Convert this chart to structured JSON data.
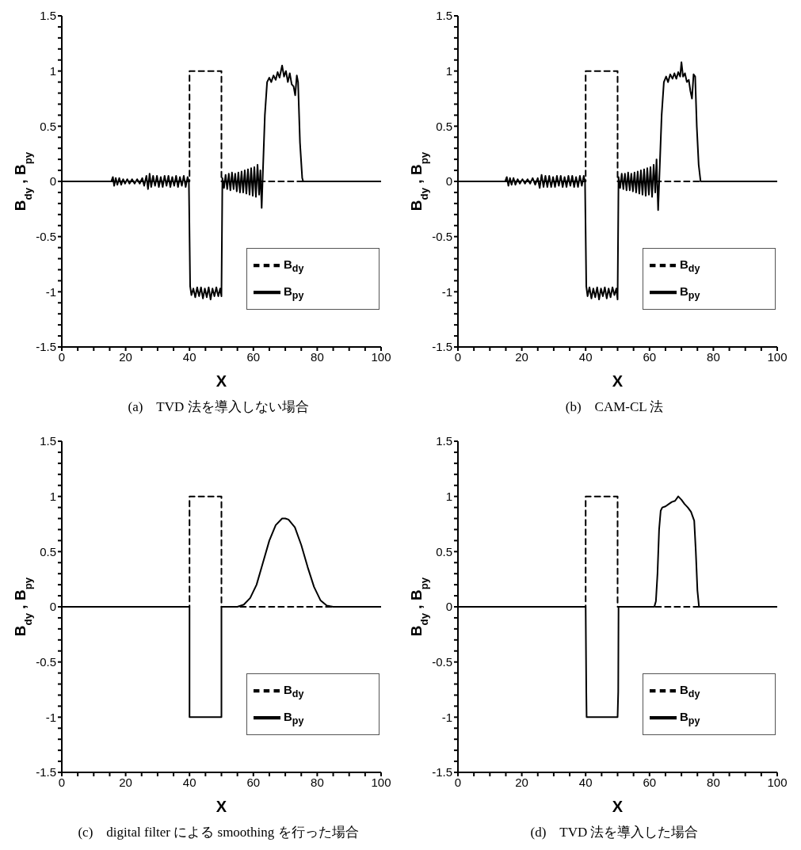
{
  "chart_data": [
    {
      "type": "line",
      "title": "(a)　TVD 法を導入しない場合",
      "xlabel": "X",
      "ylabel": "B$_{dy}$ , B$_{py}$",
      "xlim": [
        0,
        100
      ],
      "ylim": [
        -1.5,
        1.5
      ],
      "xticks": [
        0,
        {
          "value": 5,
          "label": null
        },
        {
          "value": 10,
          "label": null
        },
        {
          "value": 15,
          "label": null
        },
        20,
        {
          "value": 25,
          "label": null
        },
        {
          "value": 30,
          "label": null
        },
        {
          "value": 35,
          "label": null
        },
        40,
        {
          "value": 45,
          "label": null
        },
        {
          "value": 50,
          "label": null
        },
        {
          "value": 55,
          "label": null
        },
        60,
        {
          "value": 65,
          "label": null
        },
        {
          "value": 70,
          "label": null
        },
        {
          "value": 75,
          "label": null
        },
        80,
        {
          "value": 85,
          "label": null
        },
        {
          "value": 90,
          "label": null
        },
        {
          "value": 95,
          "label": null
        },
        100
      ],
      "yticks": [
        -1.5,
        {
          "value": -1.4,
          "label": null
        },
        {
          "value": -1.3,
          "label": null
        },
        {
          "value": -1.2,
          "label": null
        },
        {
          "value": -1.1,
          "label": null
        },
        -1,
        {
          "value": -0.9,
          "label": null
        },
        {
          "value": -0.8,
          "label": null
        },
        {
          "value": -0.7,
          "label": null
        },
        {
          "value": -0.6,
          "label": null
        },
        -0.5,
        {
          "value": -0.4,
          "label": null
        },
        {
          "value": -0.3,
          "label": null
        },
        {
          "value": -0.2,
          "label": null
        },
        {
          "value": -0.1,
          "label": null
        },
        0,
        {
          "value": 0.1,
          "label": null
        },
        {
          "value": 0.2,
          "label": null
        },
        {
          "value": 0.3,
          "label": null
        },
        {
          "value": 0.4,
          "label": null
        },
        0.5,
        {
          "value": 0.6,
          "label": null
        },
        {
          "value": 0.7,
          "label": null
        },
        {
          "value": 0.8,
          "label": null
        },
        {
          "value": 0.9,
          "label": null
        },
        1,
        {
          "value": 1.1,
          "label": null
        },
        {
          "value": 1.2,
          "label": null
        },
        {
          "value": 1.3,
          "label": null
        },
        {
          "value": 1.4,
          "label": null
        },
        1.5
      ],
      "legend": "bottom right",
      "marker": "none",
      "series": [
        {
          "name": "B$_{dy}$",
          "color": "#000000",
          "line_style": "dashed",
          "x": [
            0,
            40,
            40,
            50,
            50,
            100
          ],
          "values": [
            0,
            0,
            1,
            1,
            0,
            0
          ]
        },
        {
          "name": "B$_{py}$",
          "color": "#000000",
          "line_style": "solid",
          "x": [
            0,
            15.5,
            16,
            16.4,
            16.9,
            17.4,
            18,
            18.6,
            19.2,
            19.8,
            20.5,
            21.2,
            22,
            22.8,
            23.6,
            24.4,
            25.2,
            25.8,
            26.5,
            27,
            27.5,
            28,
            28.6,
            29.2,
            29.8,
            30.4,
            31,
            31.6,
            32.2,
            32.8,
            33.4,
            34,
            34.6,
            35.2,
            35.8,
            36.4,
            37,
            37.6,
            38.2,
            38.8,
            39.4,
            39.8,
            40.2,
            40.6,
            41.2,
            41.8,
            42.4,
            43,
            43.6,
            44.2,
            44.8,
            45.4,
            46,
            46.6,
            47.2,
            47.8,
            48.4,
            49,
            49.6,
            50,
            50.3,
            50.8,
            51.3,
            51.8,
            52.3,
            52.8,
            53.3,
            53.8,
            54.3,
            54.8,
            55.3,
            55.8,
            56.3,
            56.8,
            57.3,
            57.8,
            58.3,
            58.8,
            59.3,
            59.8,
            60.3,
            60.8,
            61.3,
            61.8,
            62.2,
            62.6,
            63,
            63.6,
            64.3,
            65,
            65.6,
            66.3,
            67,
            67.6,
            68.2,
            69,
            69.6,
            70.2,
            70.8,
            71.4,
            72,
            72.6,
            73.1,
            73.6,
            74,
            74.6,
            75.3,
            75.6,
            100
          ],
          "values": [
            0,
            0,
            0.04,
            -0.04,
            0.03,
            -0.03,
            0.03,
            -0.03,
            0.02,
            -0.02,
            0.02,
            -0.02,
            0.02,
            -0.02,
            0.02,
            -0.02,
            0.03,
            -0.04,
            0.05,
            -0.07,
            0.07,
            -0.05,
            0.05,
            -0.04,
            0.05,
            -0.05,
            0.04,
            -0.05,
            0.05,
            -0.04,
            0.05,
            -0.05,
            0.04,
            -0.04,
            0.05,
            -0.05,
            0.04,
            -0.04,
            0.05,
            -0.05,
            0.04,
            0,
            -0.95,
            -1.03,
            -0.97,
            -1.05,
            -0.96,
            -1.04,
            -0.96,
            -1.06,
            -0.97,
            -1.05,
            -0.96,
            -1.07,
            -0.97,
            -1.04,
            -0.96,
            -1.04,
            -0.97,
            -1.04,
            0.03,
            -0.06,
            0.06,
            -0.07,
            0.07,
            -0.08,
            0.08,
            -0.07,
            0.07,
            -0.09,
            0.08,
            -0.1,
            0.09,
            -0.1,
            0.1,
            -0.11,
            0.11,
            -0.12,
            0.12,
            -0.13,
            0.13,
            -0.14,
            0.15,
            -0.12,
            0.1,
            -0.24,
            0.1,
            0.6,
            0.9,
            0.94,
            0.9,
            0.96,
            0.92,
            0.99,
            0.94,
            1.05,
            0.95,
            1,
            0.9,
            0.98,
            0.88,
            0.86,
            0.78,
            0.96,
            0.9,
            0.35,
            0.03,
            0,
            0
          ]
        }
      ]
    },
    {
      "type": "line",
      "title": "(b)　CAM-CL 法",
      "xlabel": "X",
      "ylabel": "B$_{dy}$ , B$_{py}$",
      "xlim": [
        0,
        100
      ],
      "ylim": [
        -1.5,
        1.5
      ],
      "xticks": [
        0,
        {
          "value": 5,
          "label": null
        },
        {
          "value": 10,
          "label": null
        },
        {
          "value": 15,
          "label": null
        },
        20,
        {
          "value": 25,
          "label": null
        },
        {
          "value": 30,
          "label": null
        },
        {
          "value": 35,
          "label": null
        },
        40,
        {
          "value": 45,
          "label": null
        },
        {
          "value": 50,
          "label": null
        },
        {
          "value": 55,
          "label": null
        },
        60,
        {
          "value": 65,
          "label": null
        },
        {
          "value": 70,
          "label": null
        },
        {
          "value": 75,
          "label": null
        },
        80,
        {
          "value": 85,
          "label": null
        },
        {
          "value": 90,
          "label": null
        },
        {
          "value": 95,
          "label": null
        },
        100
      ],
      "yticks": [
        -1.5,
        {
          "value": -1.4,
          "label": null
        },
        {
          "value": -1.3,
          "label": null
        },
        {
          "value": -1.2,
          "label": null
        },
        {
          "value": -1.1,
          "label": null
        },
        -1,
        {
          "value": -0.9,
          "label": null
        },
        {
          "value": -0.8,
          "label": null
        },
        {
          "value": -0.7,
          "label": null
        },
        {
          "value": -0.6,
          "label": null
        },
        -0.5,
        {
          "value": -0.4,
          "label": null
        },
        {
          "value": -0.3,
          "label": null
        },
        {
          "value": -0.2,
          "label": null
        },
        {
          "value": -0.1,
          "label": null
        },
        0,
        {
          "value": 0.1,
          "label": null
        },
        {
          "value": 0.2,
          "label": null
        },
        {
          "value": 0.3,
          "label": null
        },
        {
          "value": 0.4,
          "label": null
        },
        0.5,
        {
          "value": 0.6,
          "label": null
        },
        {
          "value": 0.7,
          "label": null
        },
        {
          "value": 0.8,
          "label": null
        },
        {
          "value": 0.9,
          "label": null
        },
        1,
        {
          "value": 1.1,
          "label": null
        },
        {
          "value": 1.2,
          "label": null
        },
        {
          "value": 1.3,
          "label": null
        },
        {
          "value": 1.4,
          "label": null
        },
        1.5
      ],
      "legend": "bottom right",
      "marker": "none",
      "series": [
        {
          "name": "B$_{dy}$",
          "color": "#000000",
          "line_style": "dashed",
          "x": [
            0,
            40,
            40,
            50,
            50,
            100
          ],
          "values": [
            0,
            0,
            1,
            1,
            0,
            0
          ]
        },
        {
          "name": "B$_{py}$",
          "color": "#000000",
          "line_style": "solid",
          "x": [
            0,
            14.8,
            15.3,
            15.8,
            16.3,
            16.8,
            17.4,
            18,
            18.7,
            19.4,
            20.2,
            21,
            21.8,
            22.6,
            23.4,
            24.2,
            25,
            25.6,
            26.2,
            26.8,
            27.4,
            28,
            28.6,
            29.2,
            29.8,
            30.4,
            31,
            31.6,
            32.2,
            32.8,
            33.4,
            34,
            34.6,
            35.2,
            35.8,
            36.4,
            37,
            37.6,
            38.2,
            38.8,
            39.4,
            39.8,
            40.2,
            40.6,
            41.2,
            41.8,
            42.4,
            43,
            43.6,
            44.2,
            44.8,
            45.4,
            46,
            46.6,
            47.2,
            47.8,
            48.4,
            49,
            49.6,
            50,
            50.3,
            50.8,
            51.3,
            51.8,
            52.3,
            52.8,
            53.3,
            53.8,
            54.3,
            54.8,
            55.3,
            55.8,
            56.3,
            56.8,
            57.3,
            57.8,
            58.3,
            58.8,
            59.3,
            59.8,
            60.3,
            60.8,
            61.3,
            61.8,
            62.2,
            62.7,
            63.1,
            63.8,
            64.5,
            65.2,
            65.8,
            66.5,
            67.2,
            67.8,
            68.4,
            69,
            69.6,
            70,
            70.5,
            71.1,
            71.7,
            72.3,
            72.8,
            73.3,
            73.8,
            74.3,
            74.8,
            75.4,
            76,
            100
          ],
          "values": [
            0,
            0,
            0.04,
            -0.04,
            0.03,
            -0.03,
            0.03,
            -0.03,
            0.02,
            -0.02,
            0.02,
            -0.02,
            0.02,
            -0.02,
            0.03,
            -0.03,
            0.03,
            -0.06,
            0.06,
            -0.05,
            0.05,
            -0.05,
            0.05,
            -0.05,
            0.04,
            -0.05,
            0.05,
            -0.04,
            0.05,
            -0.05,
            0.04,
            -0.05,
            0.05,
            -0.04,
            0.05,
            -0.05,
            0.04,
            -0.05,
            0.05,
            -0.04,
            0.05,
            0,
            -0.95,
            -1.04,
            -0.96,
            -1.06,
            -0.97,
            -1.05,
            -0.96,
            -1.07,
            -0.97,
            -1.04,
            -0.96,
            -1.06,
            -0.97,
            -1.05,
            -0.96,
            -1.03,
            -0.97,
            -1.07,
            0.04,
            -0.06,
            0.07,
            -0.07,
            0.07,
            -0.08,
            0.08,
            -0.08,
            0.07,
            -0.09,
            0.08,
            -0.1,
            0.09,
            -0.11,
            0.1,
            -0.12,
            0.11,
            -0.13,
            0.12,
            -0.12,
            0.13,
            -0.14,
            0.15,
            -0.1,
            0.2,
            -0.26,
            0.05,
            0.6,
            0.9,
            0.95,
            0.9,
            0.97,
            0.93,
            0.98,
            0.93,
            0.99,
            0.95,
            1.08,
            0.95,
            0.98,
            0.9,
            0.92,
            0.82,
            0.75,
            0.97,
            0.95,
            0.5,
            0.15,
            0,
            0
          ]
        }
      ]
    },
    {
      "type": "line",
      "title": "(c)　digital filter による smoothing を行った場合",
      "xlabel": "X",
      "ylabel": "B$_{dy}$ , B$_{py}$",
      "xlim": [
        0,
        100
      ],
      "ylim": [
        -1.5,
        1.5
      ],
      "xticks": [
        0,
        {
          "value": 5,
          "label": null
        },
        {
          "value": 10,
          "label": null
        },
        {
          "value": 15,
          "label": null
        },
        20,
        {
          "value": 25,
          "label": null
        },
        {
          "value": 30,
          "label": null
        },
        {
          "value": 35,
          "label": null
        },
        40,
        {
          "value": 45,
          "label": null
        },
        {
          "value": 50,
          "label": null
        },
        {
          "value": 55,
          "label": null
        },
        60,
        {
          "value": 65,
          "label": null
        },
        {
          "value": 70,
          "label": null
        },
        {
          "value": 75,
          "label": null
        },
        80,
        {
          "value": 85,
          "label": null
        },
        {
          "value": 90,
          "label": null
        },
        {
          "value": 95,
          "label": null
        },
        100
      ],
      "yticks": [
        -1.5,
        {
          "value": -1.4,
          "label": null
        },
        {
          "value": -1.3,
          "label": null
        },
        {
          "value": -1.2,
          "label": null
        },
        {
          "value": -1.1,
          "label": null
        },
        -1,
        {
          "value": -0.9,
          "label": null
        },
        {
          "value": -0.8,
          "label": null
        },
        {
          "value": -0.7,
          "label": null
        },
        {
          "value": -0.6,
          "label": null
        },
        -0.5,
        {
          "value": -0.4,
          "label": null
        },
        {
          "value": -0.3,
          "label": null
        },
        {
          "value": -0.2,
          "label": null
        },
        {
          "value": -0.1,
          "label": null
        },
        0,
        {
          "value": 0.1,
          "label": null
        },
        {
          "value": 0.2,
          "label": null
        },
        {
          "value": 0.3,
          "label": null
        },
        {
          "value": 0.4,
          "label": null
        },
        0.5,
        {
          "value": 0.6,
          "label": null
        },
        {
          "value": 0.7,
          "label": null
        },
        {
          "value": 0.8,
          "label": null
        },
        {
          "value": 0.9,
          "label": null
        },
        1,
        {
          "value": 1.1,
          "label": null
        },
        {
          "value": 1.2,
          "label": null
        },
        {
          "value": 1.3,
          "label": null
        },
        {
          "value": 1.4,
          "label": null
        },
        1.5
      ],
      "legend": "bottom right",
      "marker": "none",
      "series": [
        {
          "name": "B$_{dy}$",
          "color": "#000000",
          "line_style": "dashed",
          "x": [
            0,
            40,
            40,
            50,
            50,
            100
          ],
          "values": [
            0,
            0,
            1,
            1,
            0,
            0
          ]
        },
        {
          "name": "B$_{py}$",
          "color": "#000000",
          "line_style": "solid",
          "x": [
            0,
            40,
            40,
            50,
            50,
            55,
            57,
            59,
            61,
            63,
            65,
            67,
            69,
            70,
            71,
            73,
            75,
            77,
            79,
            81,
            83,
            85,
            100
          ],
          "values": [
            0,
            0,
            -1,
            -1,
            0,
            0,
            0.02,
            0.08,
            0.2,
            0.4,
            0.6,
            0.74,
            0.8,
            0.8,
            0.79,
            0.72,
            0.56,
            0.36,
            0.18,
            0.06,
            0.01,
            0,
            0
          ]
        }
      ]
    },
    {
      "type": "line",
      "title": "(d)　TVD 法を導入した場合",
      "xlabel": "X",
      "ylabel": "B$_{dy}$ , B$_{py}$",
      "xlim": [
        0,
        100
      ],
      "ylim": [
        -1.5,
        1.5
      ],
      "xticks": [
        0,
        {
          "value": 5,
          "label": null
        },
        {
          "value": 10,
          "label": null
        },
        {
          "value": 15,
          "label": null
        },
        20,
        {
          "value": 25,
          "label": null
        },
        {
          "value": 30,
          "label": null
        },
        {
          "value": 35,
          "label": null
        },
        40,
        {
          "value": 45,
          "label": null
        },
        {
          "value": 50,
          "label": null
        },
        {
          "value": 55,
          "label": null
        },
        60,
        {
          "value": 65,
          "label": null
        },
        {
          "value": 70,
          "label": null
        },
        {
          "value": 75,
          "label": null
        },
        80,
        {
          "value": 85,
          "label": null
        },
        {
          "value": 90,
          "label": null
        },
        {
          "value": 95,
          "label": null
        },
        100
      ],
      "yticks": [
        -1.5,
        {
          "value": -1.4,
          "label": null
        },
        {
          "value": -1.3,
          "label": null
        },
        {
          "value": -1.2,
          "label": null
        },
        {
          "value": -1.1,
          "label": null
        },
        -1,
        {
          "value": -0.9,
          "label": null
        },
        {
          "value": -0.8,
          "label": null
        },
        {
          "value": -0.7,
          "label": null
        },
        {
          "value": -0.6,
          "label": null
        },
        -0.5,
        {
          "value": -0.4,
          "label": null
        },
        {
          "value": -0.3,
          "label": null
        },
        {
          "value": -0.2,
          "label": null
        },
        {
          "value": -0.1,
          "label": null
        },
        0,
        {
          "value": 0.1,
          "label": null
        },
        {
          "value": 0.2,
          "label": null
        },
        {
          "value": 0.3,
          "label": null
        },
        {
          "value": 0.4,
          "label": null
        },
        0.5,
        {
          "value": 0.6,
          "label": null
        },
        {
          "value": 0.7,
          "label": null
        },
        {
          "value": 0.8,
          "label": null
        },
        {
          "value": 0.9,
          "label": null
        },
        1,
        {
          "value": 1.1,
          "label": null
        },
        {
          "value": 1.2,
          "label": null
        },
        {
          "value": 1.3,
          "label": null
        },
        {
          "value": 1.4,
          "label": null
        },
        1.5
      ],
      "legend": "bottom right",
      "marker": "none",
      "series": [
        {
          "name": "B$_{dy}$",
          "color": "#000000",
          "line_style": "dashed",
          "x": [
            0,
            40,
            40,
            50,
            50,
            100
          ],
          "values": [
            0,
            0,
            1,
            1,
            0,
            0
          ]
        },
        {
          "name": "B$_{py}$",
          "color": "#000000",
          "line_style": "solid",
          "x": [
            0,
            40,
            40.2,
            40.3,
            50,
            50.2,
            50.3,
            61.5,
            62,
            62.5,
            63,
            63.5,
            64,
            65,
            66,
            67,
            68,
            69,
            70,
            71,
            72,
            73,
            74,
            74.5,
            75,
            75.5,
            100
          ],
          "values": [
            0,
            0,
            -0.77,
            -1,
            -1,
            -0.77,
            0,
            0,
            0.05,
            0.3,
            0.7,
            0.87,
            0.9,
            0.91,
            0.93,
            0.95,
            0.96,
            1,
            0.97,
            0.93,
            0.9,
            0.86,
            0.78,
            0.5,
            0.15,
            0,
            0
          ]
        }
      ]
    }
  ]
}
